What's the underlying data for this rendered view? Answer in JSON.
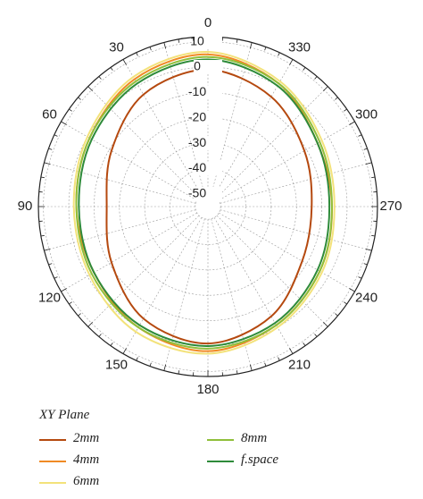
{
  "chart_data": {
    "type": "line",
    "subtype": "polar",
    "title": "",
    "angular_labels": [
      "0",
      "30",
      "60",
      "90",
      "120",
      "150",
      "180",
      "210",
      "240",
      "270",
      "300",
      "330"
    ],
    "angular_direction": "counterclockwise",
    "zero_location": "top",
    "radial_labels": [
      "10",
      "0",
      "-10",
      "-20",
      "-30",
      "-40",
      "-50"
    ],
    "rlim": [
      -55,
      12
    ],
    "grid": true,
    "legend_title": "XY Plane",
    "legend_position": "bottom",
    "theta": [
      0,
      30,
      60,
      90,
      120,
      150,
      180,
      210,
      240,
      270,
      300,
      330
    ],
    "series": [
      {
        "name": "2mm",
        "color": "#b5490f",
        "values": [
          -1,
          -4,
          -11,
          -15,
          -11,
          -4,
          -1,
          -5,
          -12,
          -14,
          -11,
          -5
        ]
      },
      {
        "name": "4mm",
        "color": "#f08a24",
        "values": [
          5,
          3,
          -1,
          -3,
          -3,
          0,
          2,
          -1,
          -4,
          -6,
          -5,
          1
        ]
      },
      {
        "name": "6mm",
        "color": "#f3e27a",
        "values": [
          6,
          4,
          0,
          -2,
          -1,
          2,
          3,
          0,
          -3,
          -5,
          -3,
          2
        ]
      },
      {
        "name": "8mm",
        "color": "#8fbf3a",
        "values": [
          4,
          2,
          -1,
          -3,
          -2,
          0,
          1,
          -1,
          -4,
          -6,
          -4,
          1
        ]
      },
      {
        "name": "f.space",
        "color": "#2e8b3a",
        "values": [
          3,
          1,
          -2,
          -4,
          -3,
          -1,
          0,
          -2,
          -5,
          -7,
          -5,
          0
        ]
      }
    ]
  }
}
